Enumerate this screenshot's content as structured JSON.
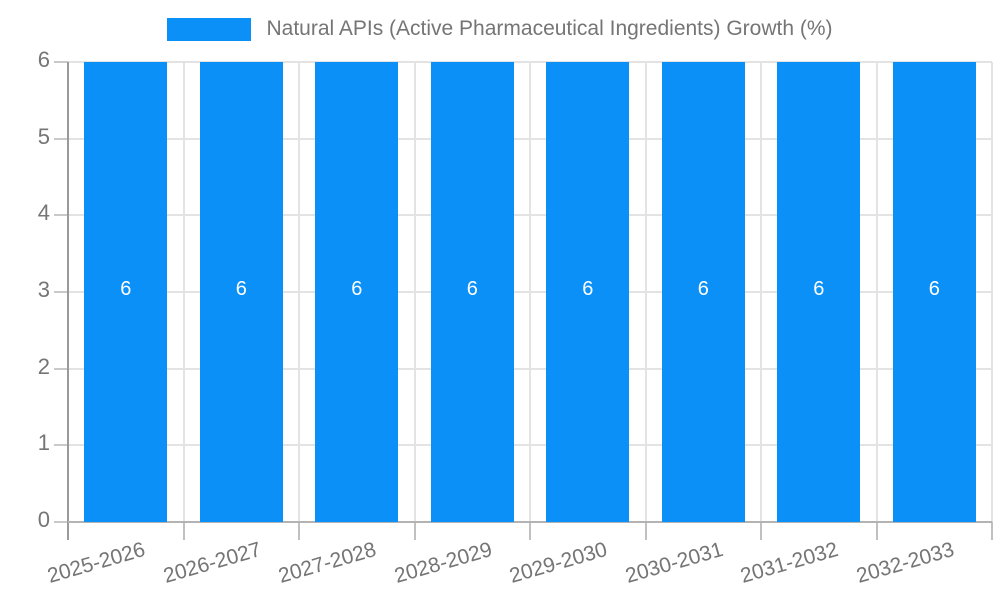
{
  "chart_data": {
    "type": "bar",
    "title": "",
    "xlabel": "",
    "ylabel": "",
    "categories": [
      "2025-2026",
      "2026-2027",
      "2027-2028",
      "2028-2029",
      "2029-2030",
      "2030-2031",
      "2031-2032",
      "2032-2033"
    ],
    "series": [
      {
        "name": "Natural APIs (Active Pharmaceutical Ingredients) Growth (%)",
        "values": [
          6,
          6,
          6,
          6,
          6,
          6,
          6,
          6
        ]
      }
    ],
    "value_labels": [
      "6",
      "6",
      "6",
      "6",
      "6",
      "6",
      "6",
      "6"
    ],
    "ylim": [
      0,
      6
    ],
    "yticks": [
      0,
      1,
      2,
      3,
      4,
      5,
      6
    ],
    "grid": true,
    "legend_position": "top-center",
    "colors": {
      "bar": "#0b90f8",
      "value_label": "#ffffff",
      "tick_text": "#757575",
      "legend_text": "#757575",
      "grid": "#e3e3e3",
      "y_axis_line": "#9a9a9a",
      "x_axis_line": "#b3b3b3",
      "background": "#ffffff"
    }
  }
}
